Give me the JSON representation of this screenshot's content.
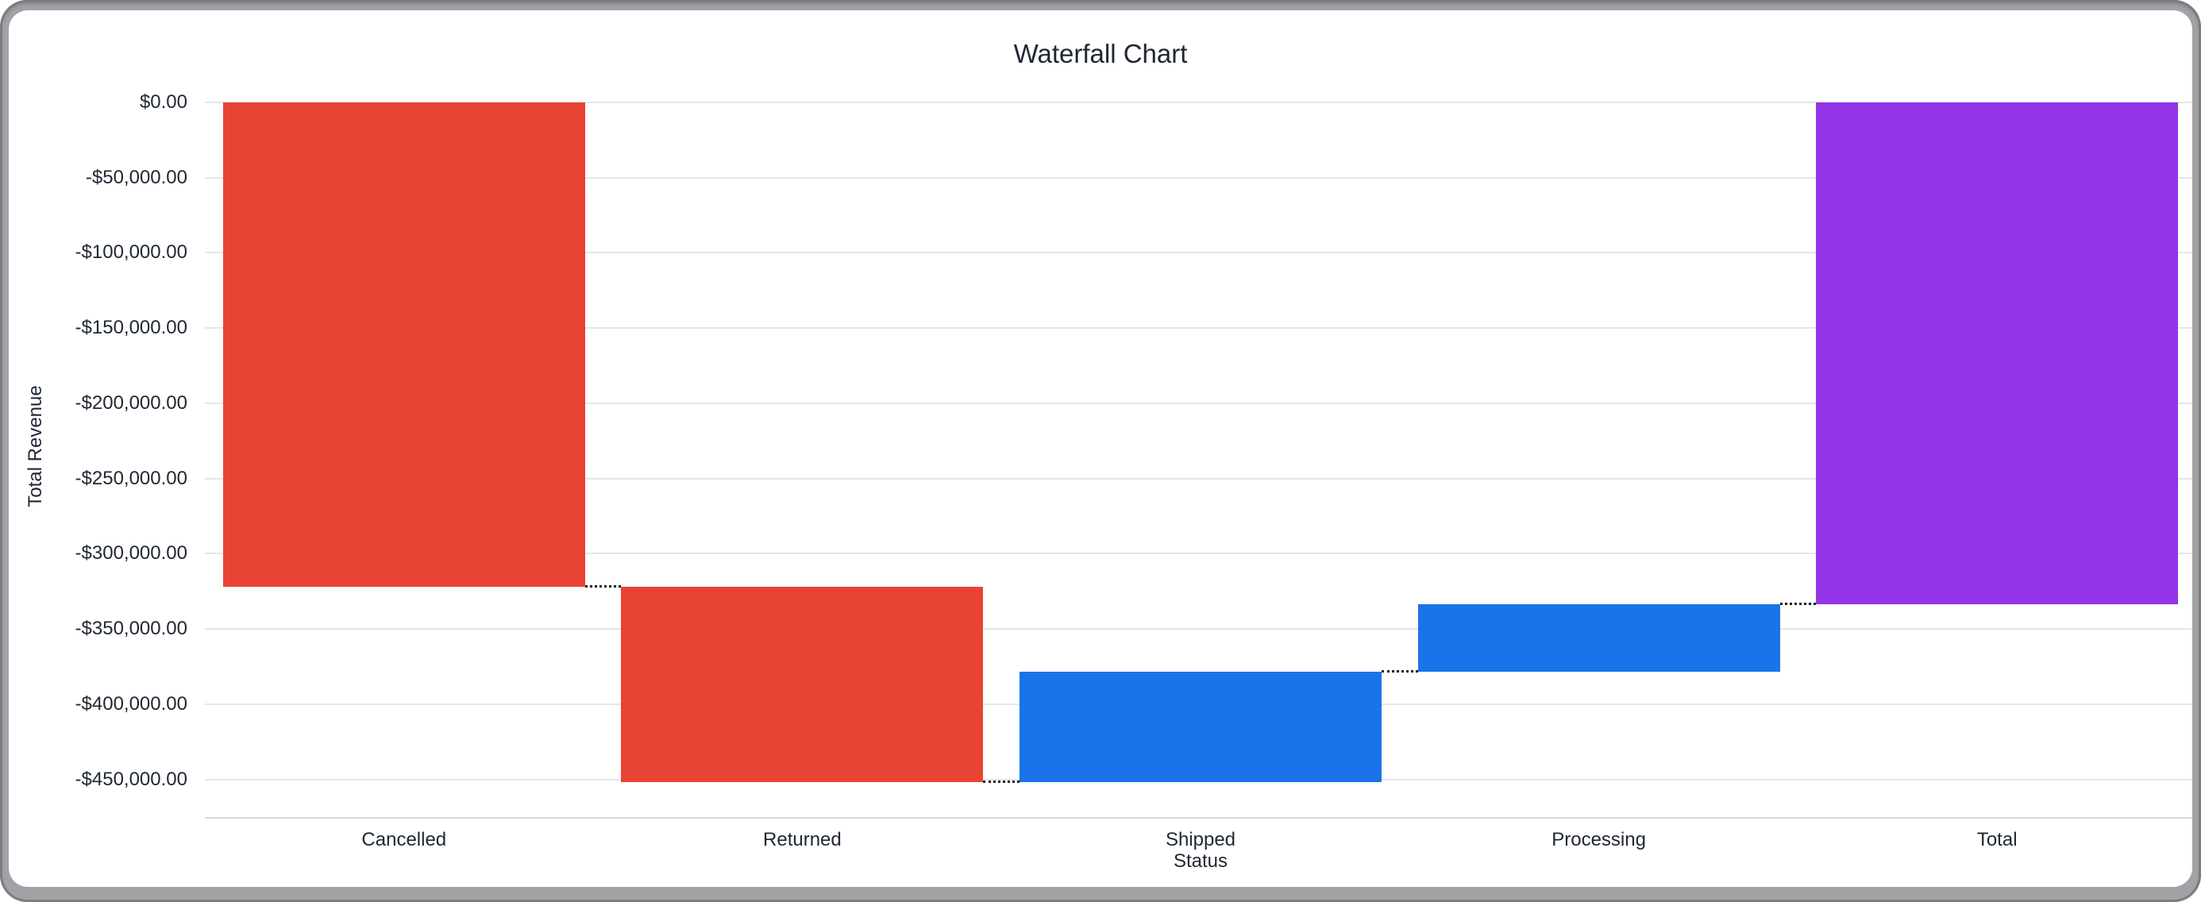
{
  "chart_data": {
    "type": "bar",
    "subtype": "waterfall",
    "title": "Waterfall Chart",
    "xlabel": "Status",
    "ylabel": "Total Revenue",
    "categories": [
      "Cancelled",
      "Returned",
      "Shipped",
      "Processing",
      "Total"
    ],
    "bars": [
      {
        "label": "Cancelled",
        "value": -322200,
        "kind": "decrease"
      },
      {
        "label": "Returned",
        "value": -129800,
        "kind": "decrease"
      },
      {
        "label": "Shipped",
        "value": 73500,
        "kind": "increase"
      },
      {
        "label": "Processing",
        "value": 45000,
        "kind": "increase"
      },
      {
        "label": "Total",
        "value": -333500,
        "kind": "total"
      }
    ],
    "cumulative_levels": [
      -322200,
      -452000,
      -378500,
      -333500,
      -333500
    ],
    "colors": {
      "decrease": "#E94334",
      "increase": "#1A73E8",
      "total": "#9334E6"
    },
    "y_ticks": [
      {
        "value": 0,
        "label": "$0.00"
      },
      {
        "value": -50000,
        "label": "-$50,000.00"
      },
      {
        "value": -100000,
        "label": "-$100,000.00"
      },
      {
        "value": -150000,
        "label": "-$150,000.00"
      },
      {
        "value": -200000,
        "label": "-$200,000.00"
      },
      {
        "value": -250000,
        "label": "-$250,000.00"
      },
      {
        "value": -300000,
        "label": "-$300,000.00"
      },
      {
        "value": -350000,
        "label": "-$350,000.00"
      },
      {
        "value": -400000,
        "label": "-$400,000.00"
      },
      {
        "value": -450000,
        "label": "-$450,000.00"
      }
    ],
    "ylim": [
      0,
      -475000
    ],
    "grid": true,
    "legend": "none"
  }
}
